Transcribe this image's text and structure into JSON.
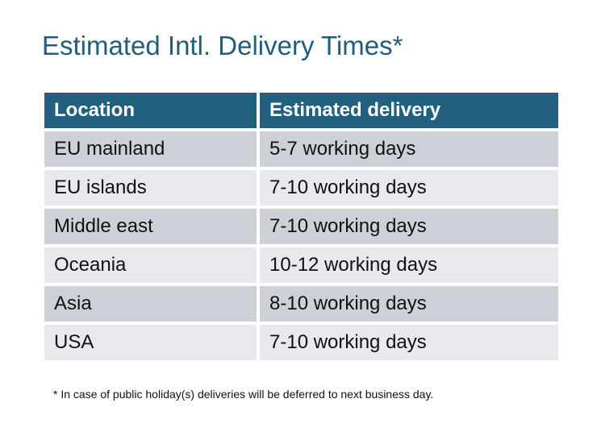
{
  "title": "Estimated Intl. Delivery Times*",
  "table": {
    "headers": [
      "Location",
      "Estimated delivery"
    ],
    "rows": [
      [
        "EU mainland",
        "5-7 working days"
      ],
      [
        "EU islands",
        "7-10 working days"
      ],
      [
        "Middle east",
        "7-10 working days"
      ],
      [
        "Oceania",
        "10-12 working days"
      ],
      [
        "Asia",
        "8-10 working days"
      ],
      [
        "USA",
        "7-10 working days"
      ]
    ]
  },
  "footnote": "* In case of public holiday(s) deliveries will be deferred to next business day.",
  "colors": {
    "header": "#21607f",
    "title": "#215d7c",
    "row_dark": "#cdd1d7",
    "row_light": "#e7e9ec"
  }
}
